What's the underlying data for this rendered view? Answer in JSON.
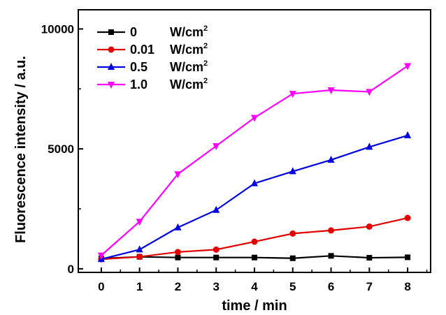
{
  "chart_data": {
    "type": "line",
    "xlabel": "time / min",
    "ylabel": "Fluorescence intensity / a.u.",
    "xlim": [
      -0.6,
      8.6
    ],
    "ylim": [
      -150,
      10800
    ],
    "xticks": [
      "0",
      "1",
      "2",
      "3",
      "4",
      "5",
      "6",
      "7",
      "8"
    ],
    "yticks": [
      "0",
      "5000",
      "10000"
    ],
    "x": [
      0,
      1,
      2,
      3,
      4,
      5,
      6,
      7,
      8
    ],
    "grid": false,
    "legend_position": "top-left",
    "series": [
      {
        "name_value": "0",
        "name_unit": "W/cm",
        "name_sup": "2",
        "color": "#000000",
        "marker": "square",
        "values": [
          430,
          500,
          470,
          470,
          470,
          440,
          540,
          460,
          480
        ]
      },
      {
        "name_value": "0.01",
        "name_unit": "W/cm",
        "name_sup": "2",
        "color": "#e00000",
        "marker": "circle",
        "values": [
          400,
          500,
          700,
          800,
          1130,
          1470,
          1600,
          1760,
          2120
        ]
      },
      {
        "name_value": "0.5",
        "name_unit": "W/cm",
        "name_sup": "2",
        "color": "#0000e0",
        "marker": "triangle-up",
        "values": [
          400,
          800,
          1720,
          2450,
          3560,
          4060,
          4540,
          5080,
          5560
        ]
      },
      {
        "name_value": "1.0",
        "name_unit": "W/cm",
        "name_sup": "2",
        "color": "#ff00ff",
        "marker": "triangle-down",
        "values": [
          560,
          1970,
          3950,
          5120,
          6300,
          7300,
          7450,
          7380,
          8460
        ]
      }
    ]
  }
}
